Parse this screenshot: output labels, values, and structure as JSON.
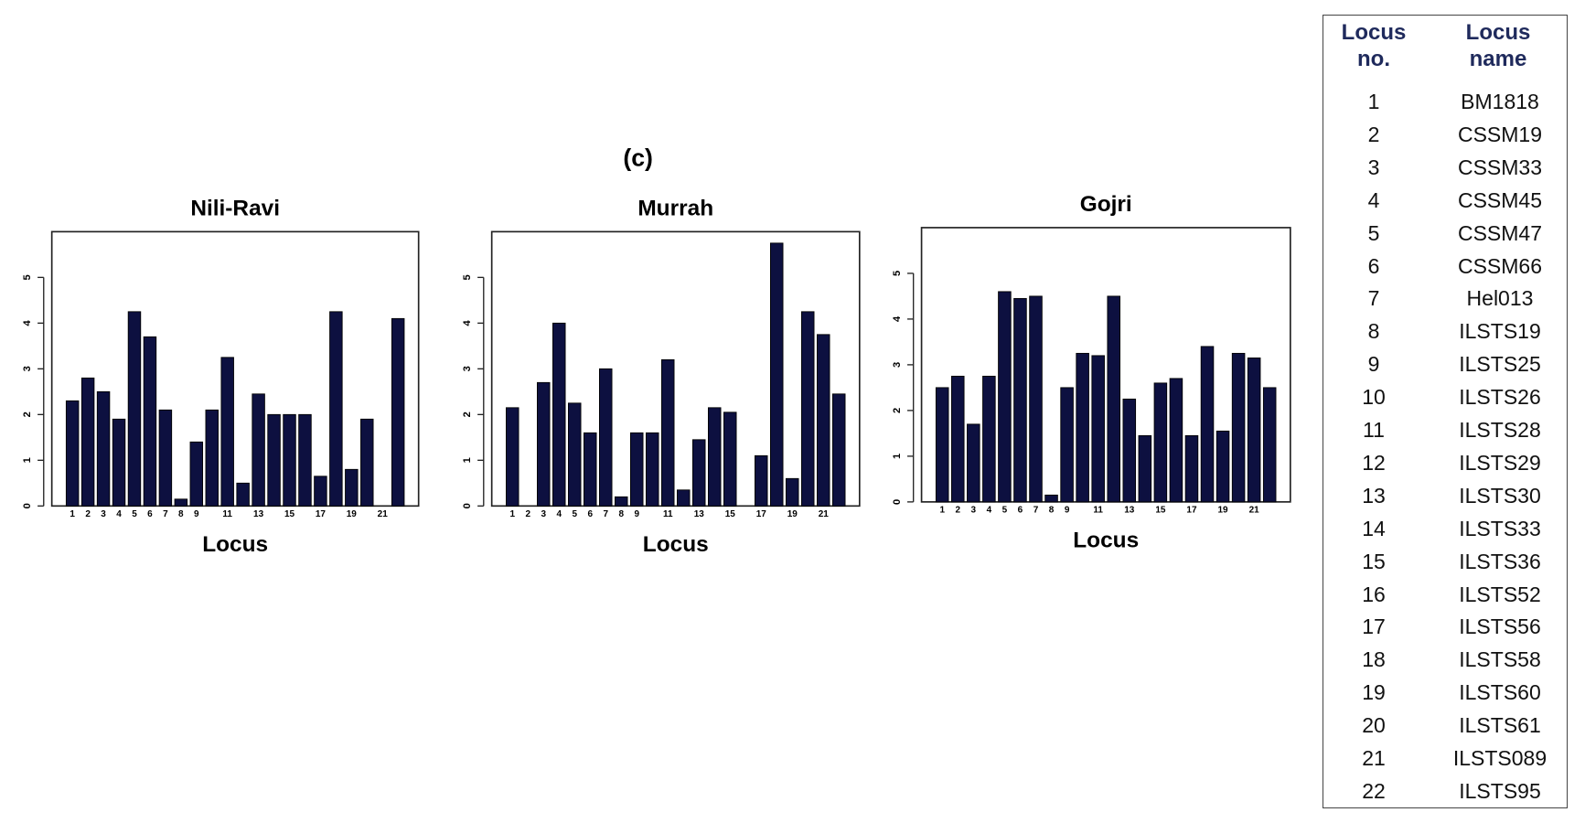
{
  "panel_label": "(c)",
  "chart_data": [
    {
      "type": "bar",
      "title": "Nili-Ravi",
      "xlabel": "Locus",
      "categories": [
        "1",
        "2",
        "3",
        "4",
        "5",
        "6",
        "7",
        "8",
        "9",
        null,
        "11",
        null,
        "13",
        null,
        "15",
        null,
        "17",
        null,
        "19",
        null,
        "21",
        null
      ],
      "values": [
        2.3,
        2.8,
        2.5,
        1.9,
        4.25,
        3.7,
        2.1,
        0.15,
        1.4,
        2.1,
        3.25,
        0.5,
        2.45,
        2.0,
        2.0,
        2.0,
        0.65,
        4.25,
        0.8,
        1.9,
        0,
        4.1
      ],
      "color": "#0d1040",
      "ylim": [
        0,
        6
      ],
      "yticks": [
        0,
        1,
        2,
        3,
        4,
        5
      ]
    },
    {
      "type": "bar",
      "title": "Murrah",
      "xlabel": "Locus",
      "categories": [
        "1",
        "2",
        "3",
        "4",
        "5",
        "6",
        "7",
        "8",
        "9",
        null,
        "11",
        null,
        "13",
        null,
        "15",
        null,
        "17",
        null,
        "19",
        null,
        "21",
        null
      ],
      "values": [
        2.15,
        0,
        2.7,
        4.0,
        2.25,
        1.6,
        3.0,
        0.2,
        1.6,
        1.6,
        3.2,
        0.35,
        1.45,
        2.15,
        2.05,
        0,
        1.1,
        5.75,
        0.6,
        4.25,
        3.75,
        2.45
      ],
      "color": "#0d1040",
      "ylim": [
        0,
        6
      ],
      "yticks": [
        0,
        1,
        2,
        3,
        4,
        5
      ]
    },
    {
      "type": "bar",
      "title": "Gojri",
      "xlabel": "Locus",
      "categories": [
        "1",
        "2",
        "3",
        "4",
        "5",
        "6",
        "7",
        "8",
        "9",
        null,
        "11",
        null,
        "13",
        null,
        "15",
        null,
        "17",
        null,
        "19",
        null,
        "21",
        null
      ],
      "values": [
        2.5,
        2.75,
        1.7,
        2.75,
        4.6,
        4.45,
        4.5,
        0.15,
        2.5,
        3.25,
        3.2,
        4.5,
        2.25,
        1.45,
        2.6,
        2.7,
        1.45,
        3.4,
        1.55,
        3.25,
        3.15,
        2.5
      ],
      "color": "#0d1040",
      "ylim": [
        0,
        6
      ],
      "yticks": [
        0,
        1,
        2,
        3,
        4,
        5
      ]
    }
  ],
  "table": {
    "header": [
      "Locus no.",
      "Locus name"
    ],
    "rows": [
      [
        1,
        "BM1818"
      ],
      [
        2,
        "CSSM19"
      ],
      [
        3,
        "CSSM33"
      ],
      [
        4,
        "CSSM45"
      ],
      [
        5,
        "CSSM47"
      ],
      [
        6,
        "CSSM66"
      ],
      [
        7,
        "Hel013"
      ],
      [
        8,
        "ILSTS19"
      ],
      [
        9,
        "ILSTS25"
      ],
      [
        10,
        "ILSTS26"
      ],
      [
        11,
        "ILSTS28"
      ],
      [
        12,
        "ILSTS29"
      ],
      [
        13,
        "ILSTS30"
      ],
      [
        14,
        "ILSTS33"
      ],
      [
        15,
        "ILSTS36"
      ],
      [
        16,
        "ILSTS52"
      ],
      [
        17,
        "ILSTS56"
      ],
      [
        18,
        "ILSTS58"
      ],
      [
        19,
        "ILSTS60"
      ],
      [
        20,
        "ILSTS61"
      ],
      [
        21,
        "ILSTS089"
      ],
      [
        22,
        "ILSTS95"
      ]
    ]
  }
}
